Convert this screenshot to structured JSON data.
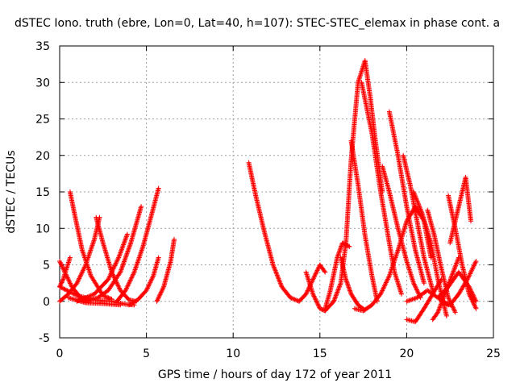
{
  "chart_data": {
    "type": "scatter",
    "title": "dSTEC Iono. truth (ebre, Lon=0, Lat=40, h=107): STEC-STEC_elemax in phase cont. a",
    "xlabel": "GPS time / hours of day 172 of year 2011",
    "ylabel": "dSTEC  / TECUs",
    "xlim": [
      0,
      25
    ],
    "ylim": [
      -5,
      35
    ],
    "xticks": [
      0,
      5,
      10,
      15,
      20,
      25
    ],
    "yticks": [
      -5,
      0,
      5,
      10,
      15,
      20,
      25,
      30,
      35
    ],
    "grid": true,
    "marker": "+",
    "marker_color": "#ff0000",
    "series": [
      {
        "x": [
          0.0,
          0.3,
          0.7,
          1.2,
          1.7
        ],
        "y": [
          5.5,
          4.0,
          2.0,
          0.5,
          0.0
        ]
      },
      {
        "x": [
          0.0,
          0.2,
          0.4,
          0.6
        ],
        "y": [
          2.0,
          3.0,
          4.5,
          6.0
        ]
      },
      {
        "x": [
          0.6,
          0.9,
          1.3,
          1.8,
          2.5,
          3.0
        ],
        "y": [
          15.0,
          11.5,
          7.0,
          3.5,
          0.8,
          0.3
        ]
      },
      {
        "x": [
          0.0,
          0.5,
          1.0,
          1.5,
          2.0,
          2.3
        ],
        "y": [
          0.0,
          1.0,
          2.5,
          5.0,
          8.5,
          11.5
        ]
      },
      {
        "x": [
          2.1,
          2.5,
          3.0,
          3.5,
          4.0,
          4.4
        ],
        "y": [
          11.5,
          8.0,
          4.0,
          1.5,
          0.2,
          0.0
        ]
      },
      {
        "x": [
          0.0,
          1.0,
          2.0,
          3.0,
          3.8,
          4.3
        ],
        "y": [
          2.0,
          0.8,
          0.2,
          0.0,
          -0.4,
          -0.5
        ]
      },
      {
        "x": [
          1.0,
          2.0,
          2.8,
          3.4,
          3.9
        ],
        "y": [
          0.0,
          1.0,
          3.0,
          6.0,
          9.2
        ]
      },
      {
        "x": [
          1.5,
          2.2,
          2.8,
          3.5,
          4.1,
          4.7
        ],
        "y": [
          0.0,
          0.5,
          1.5,
          4.0,
          8.0,
          13.0
        ]
      },
      {
        "x": [
          0.5,
          1.5,
          2.5,
          3.5
        ],
        "y": [
          0.5,
          -0.2,
          -0.3,
          -0.5
        ]
      },
      {
        "x": [
          3.3,
          3.8,
          4.3,
          4.8,
          5.2,
          5.7
        ],
        "y": [
          0.0,
          1.5,
          4.0,
          7.5,
          11.0,
          15.5
        ]
      },
      {
        "x": [
          4.0,
          4.5,
          5.0,
          5.4,
          5.7
        ],
        "y": [
          -0.5,
          0.2,
          1.5,
          3.5,
          6.0
        ]
      },
      {
        "x": [
          5.6,
          6.0,
          6.4,
          6.6
        ],
        "y": [
          0.0,
          2.0,
          5.5,
          8.5
        ]
      },
      {
        "x": [
          10.9,
          11.3,
          11.8,
          12.3,
          12.8,
          13.3,
          13.8
        ],
        "y": [
          19.0,
          14.5,
          9.5,
          5.0,
          2.0,
          0.5,
          0.0
        ]
      },
      {
        "x": [
          13.8,
          14.2,
          14.6,
          15.0,
          15.3
        ],
        "y": [
          0.0,
          1.0,
          3.0,
          5.0,
          4.0
        ]
      },
      {
        "x": [
          14.2,
          14.6,
          15.0,
          15.3
        ],
        "y": [
          4.0,
          1.0,
          -1.0,
          -1.3
        ]
      },
      {
        "x": [
          15.3,
          15.8,
          16.2,
          16.5,
          16.8,
          17.2,
          17.6,
          17.9,
          18.2,
          18.6
        ],
        "y": [
          -1.3,
          0.0,
          2.5,
          8.0,
          19.5,
          30.0,
          33.0,
          28.0,
          22.0,
          15.0
        ]
      },
      {
        "x": [
          15.3,
          15.6,
          16.0,
          16.3,
          16.7
        ],
        "y": [
          -1.0,
          1.5,
          6.0,
          8.0,
          7.5
        ]
      },
      {
        "x": [
          16.2,
          16.5,
          16.8,
          17.2,
          17.6
        ],
        "y": [
          6.0,
          3.0,
          1.0,
          -0.5,
          -1.2
        ]
      },
      {
        "x": [
          16.8,
          17.2,
          17.6,
          18.0,
          18.3
        ],
        "y": [
          22.0,
          16.0,
          9.0,
          3.5,
          0.0
        ]
      },
      {
        "x": [
          17.4,
          18.0,
          18.5,
          19.0,
          19.3,
          19.7
        ],
        "y": [
          30.0,
          23.0,
          15.0,
          8.0,
          4.0,
          1.0
        ]
      },
      {
        "x": [
          17.0,
          17.5,
          18.0,
          18.5,
          19.0,
          19.5
        ],
        "y": [
          -1.0,
          -1.3,
          -0.5,
          1.0,
          3.5,
          7.0
        ]
      },
      {
        "x": [
          18.6,
          19.0,
          19.5,
          20.0,
          20.4,
          20.8
        ],
        "y": [
          18.5,
          15.0,
          10.0,
          5.5,
          2.5,
          0.5
        ]
      },
      {
        "x": [
          19.0,
          19.5,
          20.0,
          20.5,
          21.0
        ],
        "y": [
          26.0,
          20.0,
          13.0,
          7.0,
          2.5
        ]
      },
      {
        "x": [
          19.8,
          20.2,
          20.6,
          21.0,
          21.5
        ],
        "y": [
          20.0,
          16.0,
          11.0,
          6.0,
          1.5
        ]
      },
      {
        "x": [
          20.0,
          20.5,
          21.0,
          21.5,
          22.0
        ],
        "y": [
          -2.5,
          -2.8,
          -1.0,
          1.0,
          3.0
        ]
      },
      {
        "x": [
          19.5,
          20.0,
          20.5,
          21.0,
          21.4
        ],
        "y": [
          7.0,
          11.0,
          13.0,
          11.0,
          6.0
        ]
      },
      {
        "x": [
          20.4,
          20.9,
          21.4,
          21.8,
          22.3
        ],
        "y": [
          15.0,
          12.0,
          8.0,
          3.0,
          -2.0
        ]
      },
      {
        "x": [
          21.2,
          21.6,
          22.0,
          22.4,
          22.8
        ],
        "y": [
          12.5,
          9.0,
          4.5,
          0.5,
          -1.5
        ]
      },
      {
        "x": [
          21.5,
          21.8,
          22.2,
          22.6,
          23.0
        ],
        "y": [
          -2.5,
          -1.5,
          1.0,
          3.5,
          6.0
        ]
      },
      {
        "x": [
          22.5,
          22.8,
          23.1,
          23.4,
          23.7
        ],
        "y": [
          8.0,
          11.0,
          14.0,
          17.0,
          11.0
        ]
      },
      {
        "x": [
          22.4,
          22.8,
          23.2,
          23.6,
          24.0
        ],
        "y": [
          14.5,
          10.0,
          5.0,
          1.0,
          -1.0
        ]
      },
      {
        "x": [
          22.0,
          22.5,
          23.0,
          23.5,
          24.0
        ],
        "y": [
          0.0,
          -0.5,
          1.0,
          3.0,
          5.5
        ]
      },
      {
        "x": [
          21.8,
          22.4,
          23.0,
          23.6,
          24.0
        ],
        "y": [
          0.5,
          2.0,
          4.0,
          2.0,
          0.0
        ]
      },
      {
        "x": [
          20.0,
          20.6,
          21.2,
          21.8,
          22.4
        ],
        "y": [
          0.0,
          0.5,
          1.5,
          0.5,
          -0.5
        ]
      }
    ]
  }
}
